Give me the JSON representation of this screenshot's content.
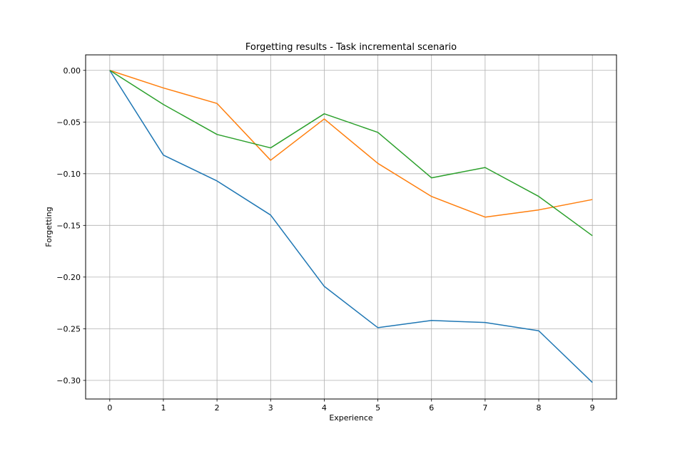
{
  "chart_data": {
    "type": "line",
    "title": "Forgetting results - Task incremental scenario",
    "xlabel": "Experience",
    "ylabel": "Forgetting",
    "x": [
      0,
      1,
      2,
      3,
      4,
      5,
      6,
      7,
      8,
      9
    ],
    "xlim": [
      -0.45,
      9.45
    ],
    "ylim": [
      -0.318,
      0.015
    ],
    "xticks": [
      0,
      1,
      2,
      3,
      4,
      5,
      6,
      7,
      8,
      9
    ],
    "yticks": [
      0.0,
      -0.05,
      -0.1,
      -0.15,
      -0.2,
      -0.25,
      -0.3
    ],
    "ytick_labels": [
      "0.00",
      "−0.05",
      "−0.10",
      "−0.15",
      "−0.20",
      "−0.25",
      "−0.30"
    ],
    "grid": true,
    "series": [
      {
        "color": "#1f77b4",
        "values": [
          0.0,
          -0.082,
          -0.107,
          -0.14,
          -0.209,
          -0.249,
          -0.242,
          -0.244,
          -0.252,
          -0.302
        ]
      },
      {
        "color": "#ff7f0e",
        "values": [
          0.0,
          -0.017,
          -0.032,
          -0.087,
          -0.047,
          -0.09,
          -0.122,
          -0.142,
          -0.135,
          -0.125
        ]
      },
      {
        "color": "#2ca02c",
        "values": [
          0.0,
          -0.033,
          -0.062,
          -0.075,
          -0.042,
          -0.06,
          -0.104,
          -0.094,
          -0.122,
          -0.16
        ]
      }
    ]
  }
}
